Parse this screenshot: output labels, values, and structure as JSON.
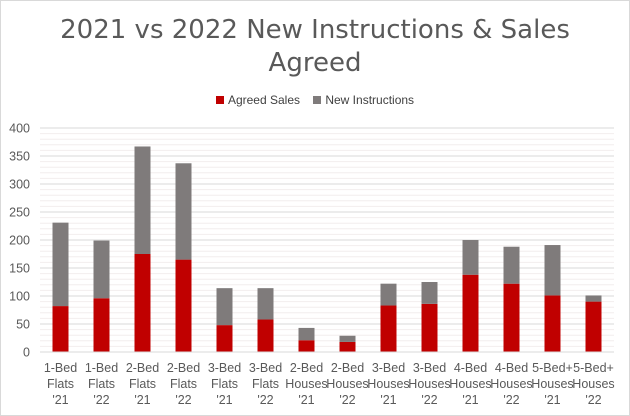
{
  "chart_data": {
    "type": "bar",
    "stacked": true,
    "title_lines": [
      "2021 vs 2022 New Instructions & Sales",
      "Agreed"
    ],
    "categories": [
      [
        "1-Bed",
        "Flats",
        "'21"
      ],
      [
        "1-Bed",
        "Flats",
        "'22"
      ],
      [
        "2-Bed",
        "Flats",
        "'21"
      ],
      [
        "2-Bed",
        "Flats",
        "'22"
      ],
      [
        "3-Bed",
        "Flats",
        "'21"
      ],
      [
        "3-Bed",
        "Flats",
        "'22"
      ],
      [
        "2-Bed",
        "Houses",
        "'21"
      ],
      [
        "2-Bed",
        "Houses",
        "'22"
      ],
      [
        "3-Bed",
        "Houses",
        "'21"
      ],
      [
        "3-Bed",
        "Houses",
        "'22"
      ],
      [
        "4-Bed",
        "Houses",
        "'21"
      ],
      [
        "4-Bed",
        "Houses",
        "'22"
      ],
      [
        "5-Bed+",
        "Houses",
        "'21"
      ],
      [
        "5-Bed+",
        "Houses",
        "'22"
      ]
    ],
    "series": [
      {
        "name": "Agreed Sales",
        "color": "#c00000",
        "values": [
          82,
          96,
          175,
          165,
          48,
          58,
          21,
          18,
          83,
          86,
          138,
          122,
          101,
          90
        ]
      },
      {
        "name": "New Instructions",
        "color": "#7f7b7b",
        "values": [
          149,
          103,
          192,
          172,
          66,
          56,
          22,
          11,
          39,
          39,
          62,
          66,
          90,
          11
        ]
      }
    ],
    "ylim": [
      0,
      400
    ],
    "yticks": [
      "0",
      "50",
      "100",
      "150",
      "200",
      "250",
      "300",
      "350",
      "400"
    ],
    "grid": true,
    "legend_position": "top",
    "xlabel": "",
    "ylabel": ""
  }
}
